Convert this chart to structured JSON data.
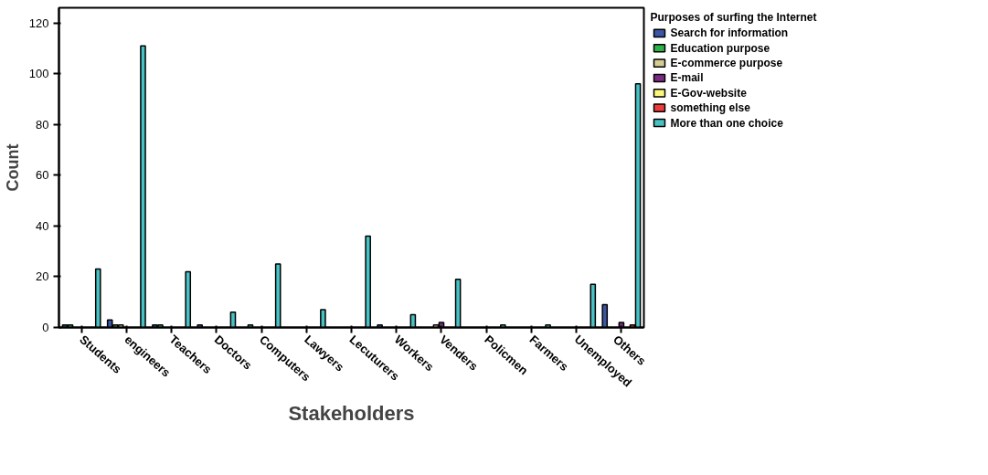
{
  "chart_data": {
    "type": "bar",
    "xlabel": "Stakeholders",
    "ylabel": "Count",
    "legend_title": "Purposes of surfing the Internet",
    "categories": [
      "Students",
      "engineers",
      "Teachers",
      "Doctors",
      "Computers",
      "Lawyers",
      "Lecuturers",
      "Workers",
      "Venders",
      "Policmen",
      "Farmers",
      "Unemployed",
      "Others"
    ],
    "series": [
      {
        "name": "Search for information",
        "color": "#3c55a5",
        "values": [
          1,
          3,
          1,
          1,
          null,
          null,
          null,
          1,
          null,
          null,
          null,
          null,
          9
        ]
      },
      {
        "name": "Education purpose",
        "color": "#2bb34a",
        "values": [
          1,
          1,
          1,
          null,
          1,
          null,
          null,
          null,
          null,
          null,
          null,
          null,
          null
        ]
      },
      {
        "name": "E-commerce purpose",
        "color": "#d4cc92",
        "values": [
          null,
          1,
          null,
          null,
          null,
          null,
          null,
          null,
          1,
          null,
          null,
          null,
          null
        ]
      },
      {
        "name": "E-mail",
        "color": "#7b2a83",
        "values": [
          null,
          null,
          null,
          null,
          null,
          null,
          null,
          null,
          2,
          null,
          null,
          null,
          2
        ]
      },
      {
        "name": "E-Gov-website",
        "color": "#fbf77a",
        "values": [
          null,
          null,
          null,
          null,
          null,
          null,
          null,
          null,
          null,
          null,
          null,
          null,
          null
        ]
      },
      {
        "name": "something else",
        "color": "#ef3a3b",
        "values": [
          null,
          null,
          null,
          null,
          null,
          null,
          null,
          null,
          null,
          null,
          null,
          null,
          1
        ]
      },
      {
        "name": "More than one choice",
        "color": "#48c1c4",
        "values": [
          23,
          111,
          22,
          6,
          25,
          7,
          36,
          5,
          19,
          1,
          1,
          17,
          96
        ]
      }
    ],
    "ylim": [
      0,
      126
    ],
    "yticks": [
      0,
      20,
      40,
      60,
      80,
      100,
      120
    ],
    "grid": false,
    "legend": "right"
  }
}
